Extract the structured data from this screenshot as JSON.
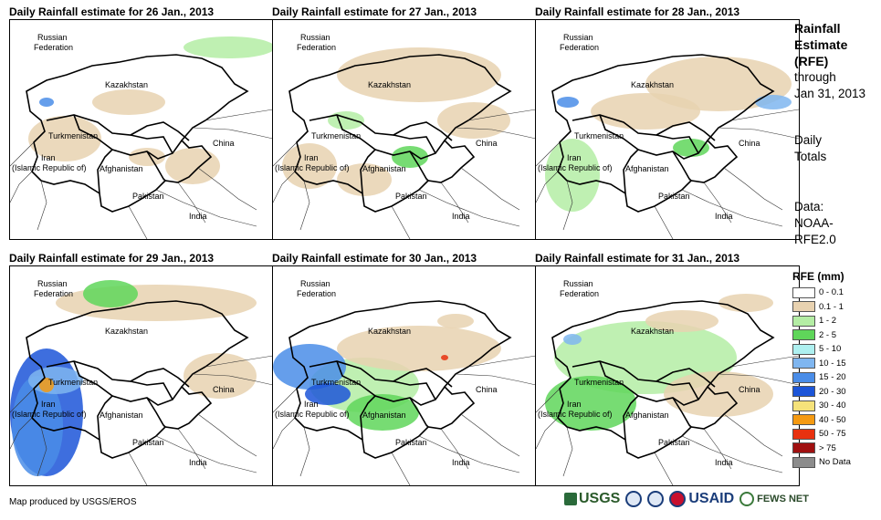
{
  "panels": [
    {
      "title": "Daily Rainfall estimate for 26 Jan., 2013"
    },
    {
      "title": "Daily Rainfall estimate for 27 Jan., 2013"
    },
    {
      "title": "Daily Rainfall estimate for 28 Jan., 2013"
    },
    {
      "title": "Daily Rainfall estimate for 29 Jan., 2013"
    },
    {
      "title": "Daily Rainfall estimate for 30 Jan., 2013"
    },
    {
      "title": "Daily Rainfall estimate for 31 Jan., 2013"
    }
  ],
  "map_labels": {
    "russia_1": "Russian",
    "russia_2": "Federation",
    "kazakhstan": "Kazakhstan",
    "turkmenistan": "Turkmenistan",
    "iran_1": "Iran",
    "iran_2": "(Islamic Republic of)",
    "afghanistan": "Afghanistan",
    "pakistan": "Pakistan",
    "china": "China",
    "india": "India"
  },
  "side_info": {
    "rfe_line1": "Rainfall",
    "rfe_line2": "Estimate",
    "rfe_line3": "(RFE)",
    "through": "through",
    "date": "Jan 31, 2013",
    "daily_1": "Daily",
    "daily_2": "Totals",
    "data_1": "Data:",
    "data_2": "NOAA-",
    "data_3": "RFE2.0"
  },
  "legend": {
    "title": "RFE (mm)",
    "items": [
      {
        "label": "0 - 0.1",
        "color": "#ffffff"
      },
      {
        "label": "0.1 - 1",
        "color": "#e8d2b0"
      },
      {
        "label": "1 - 2",
        "color": "#b4eda4"
      },
      {
        "label": "2 - 5",
        "color": "#5fd65a"
      },
      {
        "label": "5 - 10",
        "color": "#aef0f0"
      },
      {
        "label": "10 - 15",
        "color": "#7fb6f0"
      },
      {
        "label": "15 - 20",
        "color": "#4a8de8"
      },
      {
        "label": "20 - 30",
        "color": "#1c55d8"
      },
      {
        "label": "30 - 40",
        "color": "#f5e27a"
      },
      {
        "label": "40 - 50",
        "color": "#f59a12"
      },
      {
        "label": "50 - 75",
        "color": "#e8310f"
      },
      {
        "label": "> 75",
        "color": "#a01010"
      },
      {
        "label": "No Data",
        "color": "#8c8c8c"
      }
    ]
  },
  "credit": "Map produced by USGS/EROS",
  "logos": {
    "usgs": "USGS",
    "usaid": "USAID",
    "fews": "FEWS NET"
  }
}
